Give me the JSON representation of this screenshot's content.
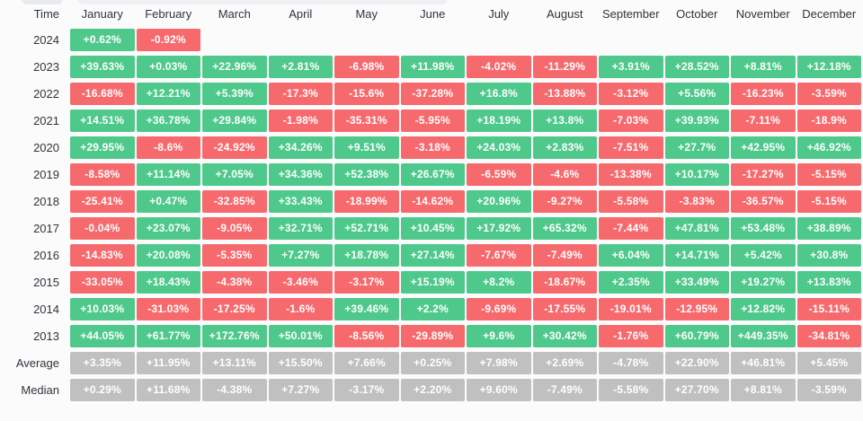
{
  "chart_data": {
    "type": "heatmap",
    "corner_label": "Time",
    "columns": [
      "January",
      "February",
      "March",
      "April",
      "May",
      "June",
      "July",
      "August",
      "September",
      "October",
      "November",
      "December"
    ],
    "colors": {
      "positive": "#4ec98b",
      "negative": "#f66a6e",
      "summary": "#c0c0c0"
    },
    "rows": [
      {
        "label": "2024",
        "type": "year",
        "values": [
          "+0.62%",
          "-0.92%",
          null,
          null,
          null,
          null,
          null,
          null,
          null,
          null,
          null,
          null
        ]
      },
      {
        "label": "2023",
        "type": "year",
        "values": [
          "+39.63%",
          "+0.03%",
          "+22.96%",
          "+2.81%",
          "-6.98%",
          "+11.98%",
          "-4.02%",
          "-11.29%",
          "+3.91%",
          "+28.52%",
          "+8.81%",
          "+12.18%"
        ]
      },
      {
        "label": "2022",
        "type": "year",
        "values": [
          "-16.68%",
          "+12.21%",
          "+5.39%",
          "-17.3%",
          "-15.6%",
          "-37.28%",
          "+16.8%",
          "-13.88%",
          "-3.12%",
          "+5.56%",
          "-16.23%",
          "-3.59%"
        ]
      },
      {
        "label": "2021",
        "type": "year",
        "values": [
          "+14.51%",
          "+36.78%",
          "+29.84%",
          "-1.98%",
          "-35.31%",
          "-5.95%",
          "+18.19%",
          "+13.8%",
          "-7.03%",
          "+39.93%",
          "-7.11%",
          "-18.9%"
        ]
      },
      {
        "label": "2020",
        "type": "year",
        "values": [
          "+29.95%",
          "-8.6%",
          "-24.92%",
          "+34.26%",
          "+9.51%",
          "-3.18%",
          "+24.03%",
          "+2.83%",
          "-7.51%",
          "+27.7%",
          "+42.95%",
          "+46.92%"
        ]
      },
      {
        "label": "2019",
        "type": "year",
        "values": [
          "-8.58%",
          "+11.14%",
          "+7.05%",
          "+34.36%",
          "+52.38%",
          "+26.67%",
          "-6.59%",
          "-4.6%",
          "-13.38%",
          "+10.17%",
          "-17.27%",
          "-5.15%"
        ]
      },
      {
        "label": "2018",
        "type": "year",
        "values": [
          "-25.41%",
          "+0.47%",
          "-32.85%",
          "+33.43%",
          "-18.99%",
          "-14.62%",
          "+20.96%",
          "-9.27%",
          "-5.58%",
          "-3.83%",
          "-36.57%",
          "-5.15%"
        ]
      },
      {
        "label": "2017",
        "type": "year",
        "values": [
          "-0.04%",
          "+23.07%",
          "-9.05%",
          "+32.71%",
          "+52.71%",
          "+10.45%",
          "+17.92%",
          "+65.32%",
          "-7.44%",
          "+47.81%",
          "+53.48%",
          "+38.89%"
        ]
      },
      {
        "label": "2016",
        "type": "year",
        "values": [
          "-14.83%",
          "+20.08%",
          "-5.35%",
          "+7.27%",
          "+18.78%",
          "+27.14%",
          "-7.67%",
          "-7.49%",
          "+6.04%",
          "+14.71%",
          "+5.42%",
          "+30.8%"
        ]
      },
      {
        "label": "2015",
        "type": "year",
        "values": [
          "-33.05%",
          "+18.43%",
          "-4.38%",
          "-3.46%",
          "-3.17%",
          "+15.19%",
          "+8.2%",
          "-18.67%",
          "+2.35%",
          "+33.49%",
          "+19.27%",
          "+13.83%"
        ]
      },
      {
        "label": "2014",
        "type": "year",
        "values": [
          "+10.03%",
          "-31.03%",
          "-17.25%",
          "-1.6%",
          "+39.46%",
          "+2.2%",
          "-9.69%",
          "-17.55%",
          "-19.01%",
          "-12.95%",
          "+12.82%",
          "-15.11%"
        ]
      },
      {
        "label": "2013",
        "type": "year",
        "values": [
          "+44.05%",
          "+61.77%",
          "+172.76%",
          "+50.01%",
          "-8.56%",
          "-29.89%",
          "+9.6%",
          "+30.42%",
          "-1.76%",
          "+60.79%",
          "+449.35%",
          "-34.81%"
        ]
      },
      {
        "label": "Average",
        "type": "summary",
        "values": [
          "+3.35%",
          "+11.95%",
          "+13.11%",
          "+15.50%",
          "+7.66%",
          "+0.25%",
          "+7.98%",
          "+2.69%",
          "-4.78%",
          "+22.90%",
          "+46.81%",
          "+5.45%"
        ]
      },
      {
        "label": "Median",
        "type": "summary",
        "values": [
          "+0.29%",
          "+11.68%",
          "-4.38%",
          "+7.27%",
          "-3.17%",
          "+2.20%",
          "+9.60%",
          "-7.49%",
          "-5.58%",
          "+27.70%",
          "+8.81%",
          "-3.59%"
        ]
      }
    ]
  }
}
